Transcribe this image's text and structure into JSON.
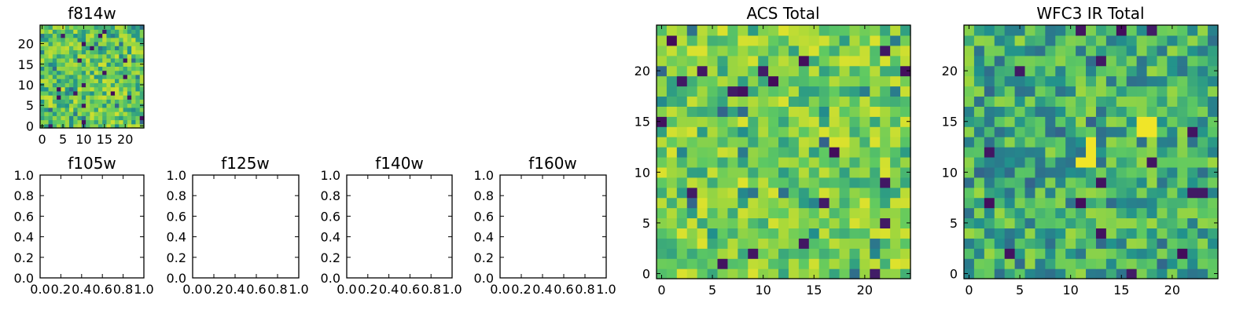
{
  "figure_title": "",
  "colormap": [
    "#440154",
    "#3b528b",
    "#21918c",
    "#5ec962",
    "#a6d83a",
    "#fde725"
  ],
  "chart_data": [
    {
      "id": "f814w",
      "type": "heatmap",
      "title": "f814w",
      "xlim": [
        -0.5,
        24.5
      ],
      "ylim": [
        -0.5,
        24.5
      ],
      "xticks": [
        0,
        5,
        10,
        15,
        20
      ],
      "yticks": [
        0,
        5,
        10,
        15,
        20
      ],
      "grid_size": 25,
      "colormap": "viridis",
      "seed": 814,
      "bias": 0.62,
      "note": "25x25 noise image; pixel values are not legible in the screenshot"
    },
    {
      "id": "f105w",
      "type": "empty",
      "title": "f105w",
      "xlim": [
        0.0,
        1.0
      ],
      "ylim": [
        0.0,
        1.0
      ],
      "xticks": [
        "0.0",
        "0.2",
        "0.4",
        "0.6",
        "0.8",
        "1.0"
      ],
      "yticks": [
        "0.0",
        "0.2",
        "0.4",
        "0.6",
        "0.8",
        "1.0"
      ]
    },
    {
      "id": "f125w",
      "type": "empty",
      "title": "f125w",
      "xlim": [
        0.0,
        1.0
      ],
      "ylim": [
        0.0,
        1.0
      ],
      "xticks": [
        "0.0",
        "0.2",
        "0.4",
        "0.6",
        "0.8",
        "1.0"
      ],
      "yticks": [
        "0.0",
        "0.2",
        "0.4",
        "0.6",
        "0.8",
        "1.0"
      ]
    },
    {
      "id": "f140w",
      "type": "empty",
      "title": "f140w",
      "xlim": [
        0.0,
        1.0
      ],
      "ylim": [
        0.0,
        1.0
      ],
      "xticks": [
        "0.0",
        "0.2",
        "0.4",
        "0.6",
        "0.8",
        "1.0"
      ],
      "yticks": [
        "0.0",
        "0.2",
        "0.4",
        "0.6",
        "0.8",
        "1.0"
      ]
    },
    {
      "id": "f160w",
      "type": "empty",
      "title": "f160w",
      "xlim": [
        0.0,
        1.0
      ],
      "ylim": [
        0.0,
        1.0
      ],
      "xticks": [
        "0.0",
        "0.2",
        "0.4",
        "0.6",
        "0.8",
        "1.0"
      ],
      "yticks": [
        "0.0",
        "0.2",
        "0.4",
        "0.6",
        "0.8",
        "1.0"
      ]
    },
    {
      "id": "acs-total",
      "type": "heatmap",
      "title": "ACS Total",
      "xlim": [
        -0.5,
        24.5
      ],
      "ylim": [
        -0.5,
        24.5
      ],
      "xticks": [
        0,
        5,
        10,
        15,
        20
      ],
      "yticks": [
        0,
        5,
        10,
        15,
        20
      ],
      "grid_size": 25,
      "colormap": "viridis",
      "seed": 1001,
      "bias": 0.65,
      "note": "25x25 noise image; pixel values are not legible in the screenshot"
    },
    {
      "id": "wfc3-ir-total",
      "type": "heatmap",
      "title": "WFC3 IR Total",
      "xlim": [
        -0.5,
        24.5
      ],
      "ylim": [
        -0.5,
        24.5
      ],
      "xticks": [
        0,
        5,
        10,
        15,
        20
      ],
      "yticks": [
        0,
        5,
        10,
        15,
        20
      ],
      "grid_size": 25,
      "colormap": "viridis",
      "seed": 3003,
      "bias": 0.5,
      "bright_spots": [
        [
          17,
          15
        ],
        [
          18,
          15
        ],
        [
          17,
          14
        ],
        [
          18,
          14
        ],
        [
          12,
          12
        ],
        [
          12,
          11
        ],
        [
          11,
          11
        ],
        [
          12,
          13
        ]
      ],
      "note": "25x25 noise image; pixel values are not legible in the screenshot"
    }
  ]
}
